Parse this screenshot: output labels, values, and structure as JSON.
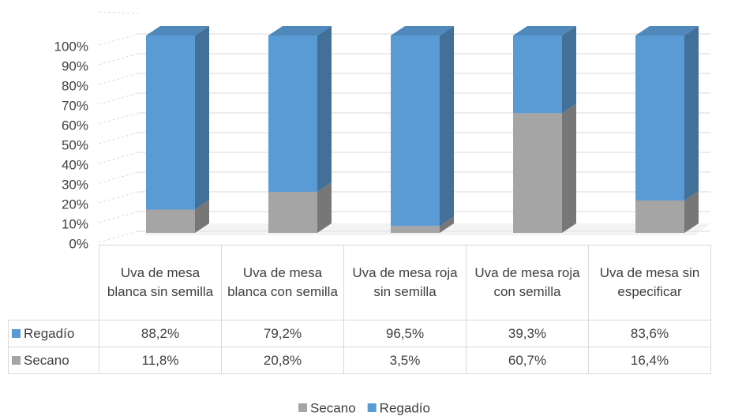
{
  "chart_data": {
    "type": "bar",
    "categories": [
      "Uva de mesa blanca sin semilla",
      "Uva de mesa blanca con semilla",
      "Uva de mesa roja sin semilla",
      "Uva de mesa roja con semilla",
      "Uva de mesa sin especificar"
    ],
    "series": [
      {
        "name": "Secano",
        "color": "#a5a5a5",
        "values": [
          11.8,
          20.8,
          3.5,
          60.7,
          16.4
        ],
        "value_labels": [
          "11,8%",
          "20,8%",
          "3,5%",
          "60,7%",
          "16,4%"
        ]
      },
      {
        "name": "Regadío",
        "color": "#5b9bd5",
        "values": [
          88.2,
          79.2,
          96.5,
          39.3,
          83.6
        ],
        "value_labels": [
          "88,2%",
          "79,2%",
          "96,5%",
          "39,3%",
          "83,6%"
        ]
      }
    ],
    "stacked": true,
    "ylim": [
      0,
      100
    ],
    "yticks": [
      {
        "value": 0,
        "label": "0%"
      },
      {
        "value": 10,
        "label": "10%"
      },
      {
        "value": 20,
        "label": "20%"
      },
      {
        "value": 30,
        "label": "30%"
      },
      {
        "value": 40,
        "label": "40%"
      },
      {
        "value": 50,
        "label": "50%"
      },
      {
        "value": 60,
        "label": "60%"
      },
      {
        "value": 70,
        "label": "70%"
      },
      {
        "value": 80,
        "label": "80%"
      },
      {
        "value": 90,
        "label": "90%"
      },
      {
        "value": 100,
        "label": "100%"
      }
    ],
    "grid": true
  }
}
